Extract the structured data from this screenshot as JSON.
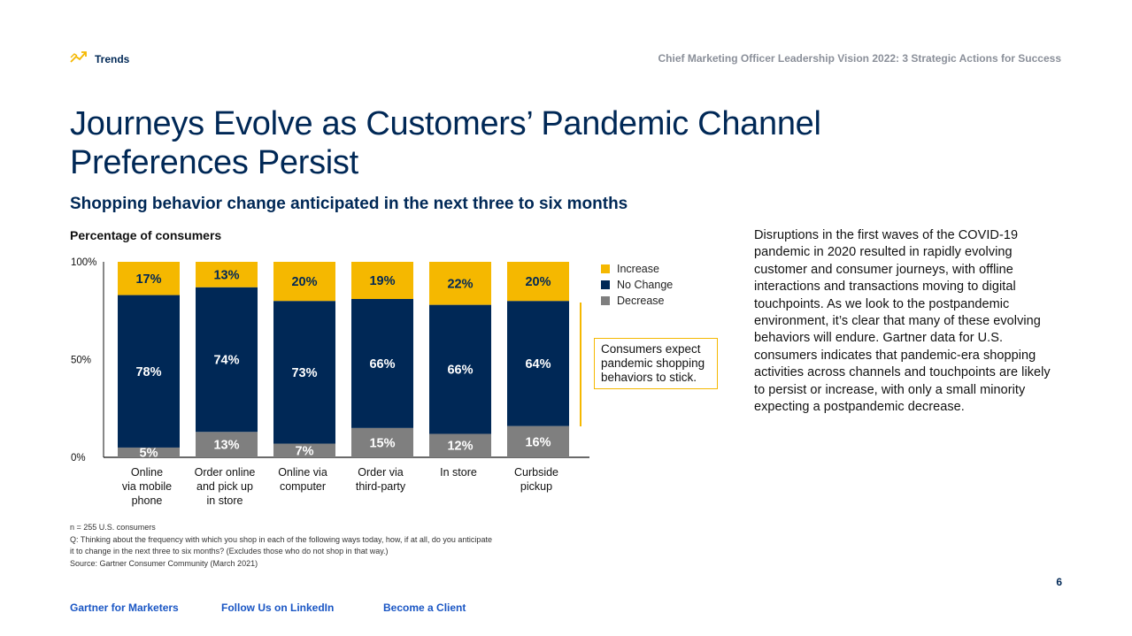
{
  "header": {
    "section_label": "Trends",
    "section_icon": "trend-up-icon",
    "report_title": "Chief Marketing Officer Leadership Vision 2022: 3 Strategic Actions for Success"
  },
  "title": "Journeys Evolve as Customers’ Pandemic Channel Preferences Persist",
  "subtitle": "Shopping behavior change anticipated in the next three to six months",
  "chart_label": "Percentage of consumers",
  "chart_data": {
    "type": "bar",
    "stacked": true,
    "categories": [
      [
        "Online",
        "via mobile",
        "phone"
      ],
      [
        "Order online",
        "and pick up",
        "in store"
      ],
      [
        "Online via",
        "computer"
      ],
      [
        "Order via",
        "third-party"
      ],
      [
        "In store"
      ],
      [
        "Curbside",
        "pickup"
      ]
    ],
    "series": [
      {
        "name": "Decrease",
        "color": "#7f7f7f",
        "values": [
          5,
          13,
          7,
          15,
          12,
          16
        ],
        "labels": [
          "5%",
          "13%",
          "7%",
          "15%",
          "12%",
          "16%"
        ],
        "label_color": "#ffffff"
      },
      {
        "name": "No Change",
        "color": "#002856",
        "values": [
          78,
          74,
          73,
          66,
          66,
          64
        ],
        "labels": [
          "78%",
          "74%",
          "73%",
          "66%",
          "66%",
          "64%"
        ],
        "label_color": "#ffffff"
      },
      {
        "name": "Increase",
        "color": "#f5b800",
        "values": [
          17,
          13,
          20,
          19,
          22,
          20
        ],
        "labels": [
          "17%",
          "13%",
          "20%",
          "19%",
          "22%",
          "20%"
        ],
        "label_color": "#002856"
      }
    ],
    "legend_order": [
      "Increase",
      "No Change",
      "Decrease"
    ],
    "ylim": [
      0,
      100
    ],
    "yticks": [
      "0%",
      "50%",
      "100%"
    ],
    "ytick_values": [
      0,
      50,
      100
    ],
    "legend_position": "right"
  },
  "callout": "Consumers expect pandemic shopping behaviors to stick.",
  "body_text": "Disruptions in the first waves of the COVID-19 pandemic in 2020 resulted in rapidly evolving customer and consumer journeys, with offline interactions and transactions moving to digital touchpoints. As we look to the postpandemic environment, it’s clear that many of these evolving behaviors will endure. Gartner data for U.S. consumers indicates that pandemic-era shopping activities across channels and touchpoints are likely to persist or increase, with only a small minority expecting a postpandemic decrease.",
  "footnote": {
    "n": "n = 255 U.S. consumers",
    "question": "Q: Thinking about the frequency with which you shop in each of the following ways today, how, if at all, do you anticipate it to change in the next three to six months? (Excludes those who do not shop in that way.)",
    "source": "Source: Gartner Consumer Community (March 2021)"
  },
  "page_number": "6",
  "footer": {
    "link1": "Gartner for Marketers",
    "link2": "Follow Us on LinkedIn",
    "link3": "Become a Client"
  },
  "colors": {
    "navy": "#002856",
    "gold": "#f5b800",
    "gray": "#7f7f7f",
    "link": "#1a56c4"
  }
}
